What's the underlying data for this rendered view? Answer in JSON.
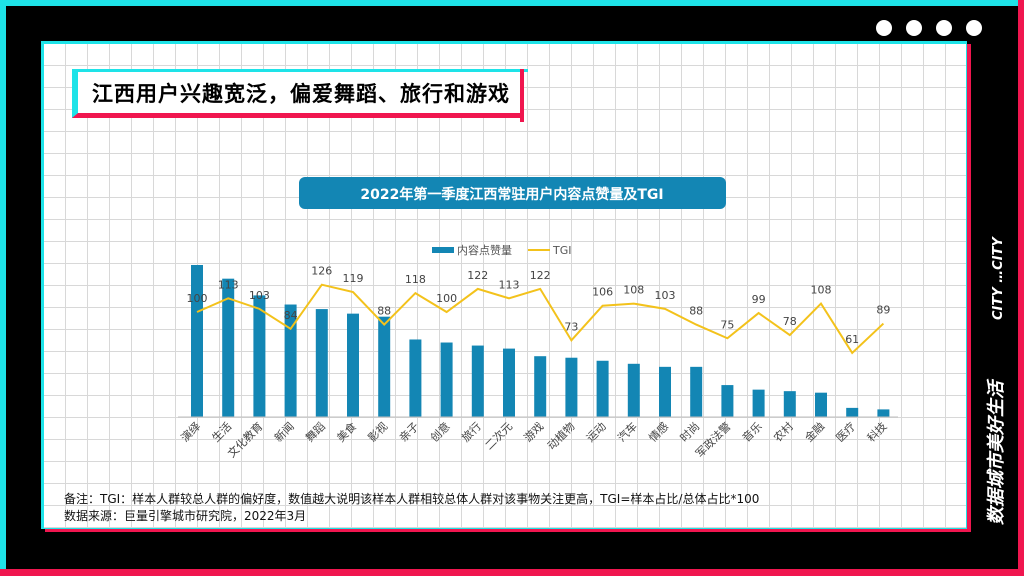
{
  "page": {
    "headline": "江西用户兴趣宽泛，偏爱舞蹈、旅行和游戏",
    "side_label_1": "数据城市美好生活",
    "side_label_2": "CITY …CITY",
    "note": "备注：TGI：样本人群较总人群的偏好度，数值越大说明该样本人群相较总体人群对该事物关注更高，TGI=样本占比/总体占比*100",
    "source": "数据来源：巨量引擎城市研究院，2022年3月",
    "colors": {
      "cyan": "#1ee3e8",
      "pink": "#f0164f",
      "bar": "#1386b4",
      "line": "#f3c21b",
      "title_bg": "#1386b4"
    }
  },
  "chart_data": {
    "type": "bar",
    "title": "2022年第一季度江西常驻用户内容点赞量及TGI",
    "legend": [
      "内容点赞量",
      "TGI"
    ],
    "legend_placement": "top-center",
    "categories": [
      "演绎",
      "生活",
      "文化教育",
      "新闻",
      "舞蹈",
      "美食",
      "影视",
      "亲子",
      "创意",
      "旅行",
      "二次元",
      "游戏",
      "动植物",
      "运动",
      "汽车",
      "情感",
      "时尚",
      "军政法警",
      "音乐",
      "农村",
      "金融",
      "医疗",
      "科技"
    ],
    "series": [
      {
        "name": "内容点赞量",
        "type": "bar",
        "values": [
          100,
          91,
          80,
          74,
          71,
          68,
          66,
          51,
          49,
          47,
          45,
          40,
          39,
          37,
          35,
          33,
          33,
          21,
          18,
          17,
          16,
          6,
          5
        ]
      },
      {
        "name": "TGI",
        "type": "line",
        "values": [
          100,
          113,
          103,
          84,
          126,
          119,
          88,
          118,
          100,
          122,
          113,
          122,
          73,
          106,
          108,
          103,
          88,
          75,
          99,
          78,
          108,
          61,
          89
        ]
      }
    ],
    "bar_ylim": [
      0,
      100
    ],
    "tgi_ylim": [
      0,
      180
    ],
    "grid": false
  }
}
